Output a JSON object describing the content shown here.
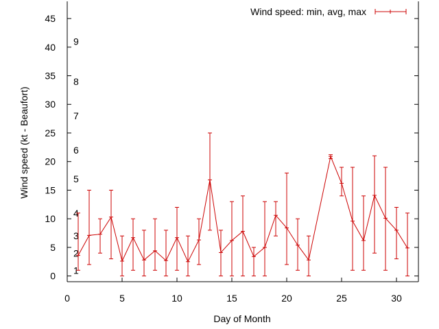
{
  "chart_data": {
    "type": "line",
    "title": "",
    "xlabel": "Day of Month",
    "ylabel": "Wind speed (kt - Beaufort)",
    "xlim": [
      0,
      32
    ],
    "ylim": [
      -1,
      48
    ],
    "x_ticks": [
      "0",
      "5",
      "10",
      "15",
      "20",
      "25",
      "30"
    ],
    "y_ticks": [
      "0",
      "5",
      "10",
      "15",
      "20",
      "25",
      "30",
      "35",
      "40",
      "45"
    ],
    "beaufort_scale": [
      {
        "label": "1",
        "value": 1
      },
      {
        "label": "2",
        "value": 4
      },
      {
        "label": "3",
        "value": 7
      },
      {
        "label": "4",
        "value": 11
      },
      {
        "label": "5",
        "value": 17
      },
      {
        "label": "6",
        "value": 22
      },
      {
        "label": "7",
        "value": 28
      },
      {
        "label": "8",
        "value": 34
      },
      {
        "label": "9",
        "value": 41
      }
    ],
    "grid": false,
    "legend_position": "top-right",
    "series": [
      {
        "name": "Wind speed: min, avg, max",
        "color": "#cc0000",
        "points": [
          {
            "x": 1,
            "avg": 3.6,
            "min": 1,
            "max": 11
          },
          {
            "x": 2,
            "avg": 7.1,
            "min": 2,
            "max": 15
          },
          {
            "x": 3,
            "avg": 7.3,
            "min": 4,
            "max": 10
          },
          {
            "x": 4,
            "avg": 10.3,
            "min": 3,
            "max": 15
          },
          {
            "x": 5,
            "avg": 2.6,
            "min": 0,
            "max": 7
          },
          {
            "x": 6,
            "avg": 6.7,
            "min": 1,
            "max": 10
          },
          {
            "x": 7,
            "avg": 2.8,
            "min": 0,
            "max": 8
          },
          {
            "x": 8,
            "avg": 4.4,
            "min": 1,
            "max": 10
          },
          {
            "x": 9,
            "avg": 2.7,
            "min": 0,
            "max": 8
          },
          {
            "x": 10,
            "avg": 6.7,
            "min": 1,
            "max": 12
          },
          {
            "x": 11,
            "avg": 2.5,
            "min": 0,
            "max": 7
          },
          {
            "x": 12,
            "avg": 6.3,
            "min": 2,
            "max": 10
          },
          {
            "x": 13,
            "avg": 16.8,
            "min": 8,
            "max": 25
          },
          {
            "x": 14,
            "avg": 4.1,
            "min": 0,
            "max": 8
          },
          {
            "x": 15,
            "avg": 6.2,
            "min": 0,
            "max": 13
          },
          {
            "x": 16,
            "avg": 7.8,
            "min": 0,
            "max": 14
          },
          {
            "x": 17,
            "avg": 3.4,
            "min": 0,
            "max": 5
          },
          {
            "x": 18,
            "avg": 5.0,
            "min": 0,
            "max": 13
          },
          {
            "x": 19,
            "avg": 10.6,
            "min": 7,
            "max": 13
          },
          {
            "x": 20,
            "avg": 8.4,
            "min": 2,
            "max": 18
          },
          {
            "x": 21,
            "avg": 5.4,
            "min": 1,
            "max": 10
          },
          {
            "x": 22,
            "avg": 2.8,
            "min": 0,
            "max": 7
          },
          {
            "x": 24,
            "avg": 20.9,
            "min": 20.5,
            "max": 21.2
          },
          {
            "x": 25,
            "avg": 16.2,
            "min": 14,
            "max": 19
          },
          {
            "x": 26,
            "avg": 9.6,
            "min": 1,
            "max": 19
          },
          {
            "x": 27,
            "avg": 6.2,
            "min": 1,
            "max": 14
          },
          {
            "x": 28,
            "avg": 14.1,
            "min": 4,
            "max": 21
          },
          {
            "x": 29,
            "avg": 10.1,
            "min": 1,
            "max": 19
          },
          {
            "x": 30,
            "avg": 8.0,
            "min": 3,
            "max": 12
          },
          {
            "x": 31,
            "avg": 4.9,
            "min": 0,
            "max": 11
          }
        ]
      }
    ]
  }
}
